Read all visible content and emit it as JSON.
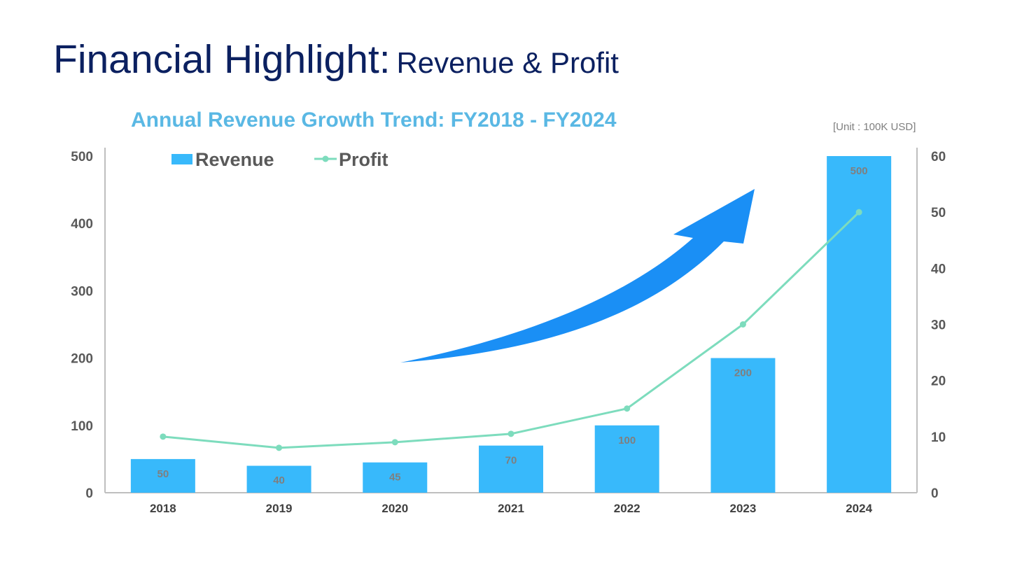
{
  "page": {
    "title_main": "Financial Highlight:",
    "title_sub": "Revenue & Profit",
    "unit_note": "[Unit : 100K USD]"
  },
  "colors": {
    "title": "#0b2060",
    "chart_title": "#5ab8e4",
    "bar": "#38b9fb",
    "line": "#7ddcbd",
    "arrow": "#1a8ff5",
    "axis": "#bfbfbf"
  },
  "chart_data": {
    "type": "bar",
    "title": "Annual Revenue Growth Trend: FY2018 - FY2024",
    "categories": [
      "2018",
      "2019",
      "2020",
      "2021",
      "2022",
      "2023",
      "2024"
    ],
    "series": [
      {
        "name": "Revenue",
        "type": "bar",
        "axis": "left",
        "values": [
          50,
          40,
          45,
          70,
          100,
          200,
          500
        ],
        "data_labels": [
          "50",
          "40",
          "45",
          "70",
          "100",
          "200",
          "500"
        ]
      },
      {
        "name": "Profit",
        "type": "line",
        "axis": "right",
        "values": [
          10,
          8,
          9,
          10.5,
          15,
          30,
          50
        ]
      }
    ],
    "y_left": {
      "ticks": [
        0,
        100,
        200,
        300,
        400,
        500
      ],
      "ylim": [
        0,
        500
      ]
    },
    "y_right": {
      "ticks": [
        0,
        10,
        20,
        30,
        40,
        50,
        60
      ],
      "ylim": [
        0,
        60
      ]
    },
    "grid": false,
    "legend": "top-left",
    "decoration": "upward-arrow"
  }
}
